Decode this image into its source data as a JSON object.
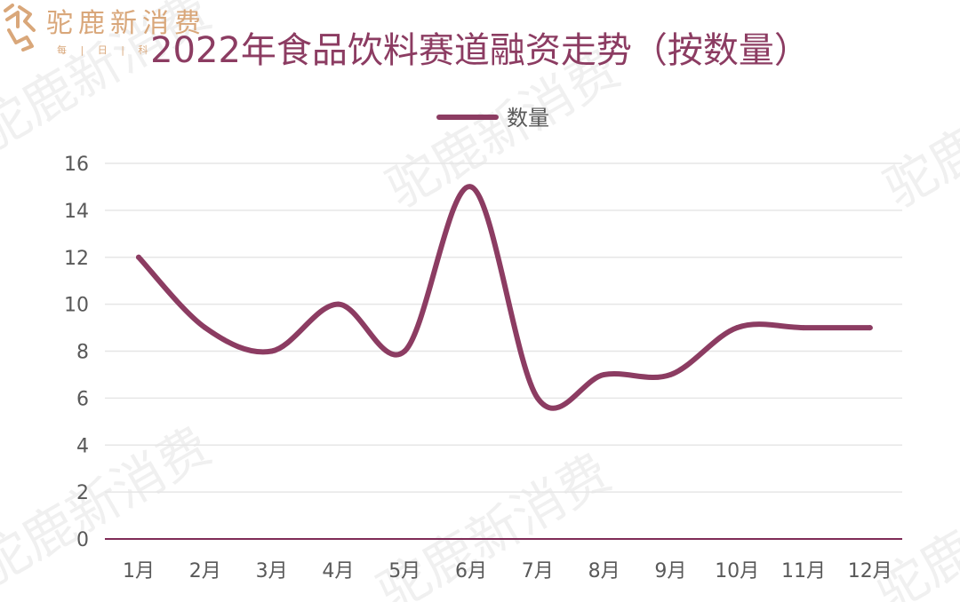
{
  "logo": {
    "name": "驼鹿新消费",
    "tagline": "每 | 日 | 科"
  },
  "watermark": {
    "text": "驼鹿新消费"
  },
  "colors": {
    "line": "#8c3c62",
    "title": "#8c3c62",
    "axis": "#7f2b57",
    "grid": "#e6e6e6",
    "tick": "#595959",
    "logo": "#d9a77a"
  },
  "chart_data": {
    "type": "line",
    "title": "2022年食品饮料赛道融资走势（按数量）",
    "categories": [
      "1月",
      "2月",
      "3月",
      "4月",
      "5月",
      "6月",
      "7月",
      "8月",
      "9月",
      "10月",
      "11月",
      "12月"
    ],
    "series": [
      {
        "name": "数量",
        "values": [
          12,
          9,
          8,
          10,
          8,
          15,
          6,
          7,
          7,
          9,
          9,
          9
        ]
      }
    ],
    "yticks": [
      "0",
      "2",
      "4",
      "6",
      "8",
      "10",
      "12",
      "14",
      "16"
    ],
    "ylim": [
      0,
      16
    ],
    "grid": true,
    "smooth": true,
    "legend_position": "top-center"
  }
}
